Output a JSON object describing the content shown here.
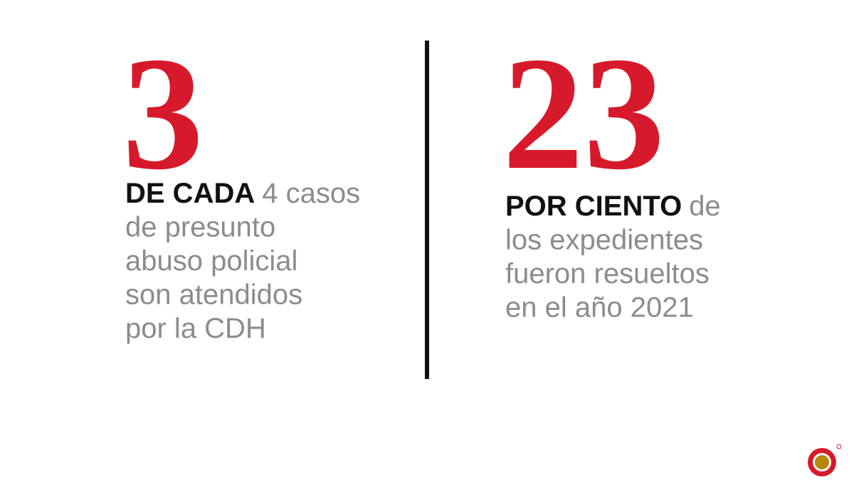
{
  "stats": [
    {
      "number": "3",
      "lead": "DE CADA",
      "lines": [
        "4 casos",
        "de presunto",
        "abuso policial",
        "son atendidos",
        "por la CDH"
      ]
    },
    {
      "number": "23",
      "lead": "POR CIENTO",
      "lines": [
        "de",
        "los expedientes",
        "fueron resueltos",
        "en el año 2021"
      ]
    }
  ]
}
